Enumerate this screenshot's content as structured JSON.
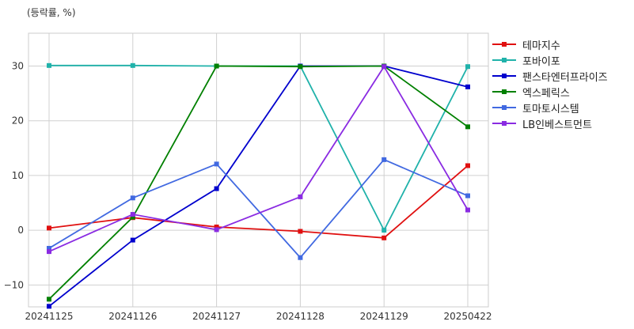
{
  "chart_data": {
    "type": "line",
    "unit_label": "(등락률, %)",
    "categories": [
      "20241125",
      "20241126",
      "20241127",
      "20241128",
      "20241129",
      "20250422"
    ],
    "ylim": [
      -14,
      36
    ],
    "yticks": [
      -10,
      0,
      10,
      20,
      30
    ],
    "ytick_labels": [
      "−10",
      "0",
      "10",
      "20",
      "30"
    ],
    "grid": true,
    "legend_position": "right",
    "series": [
      {
        "name": "테마지수",
        "color": "#e01010",
        "values": [
          0.4,
          2.3,
          0.6,
          -0.2,
          -1.4,
          11.8
        ]
      },
      {
        "name": "포바이포",
        "color": "#20b2aa",
        "values": [
          30.1,
          30.1,
          30.0,
          30.0,
          0.0,
          29.9
        ]
      },
      {
        "name": "팬스타엔터프라이즈",
        "color": "#0000cd",
        "values": [
          -13.9,
          -1.8,
          7.6,
          30.0,
          30.0,
          26.2
        ]
      },
      {
        "name": "엑스페릭스",
        "color": "#008000",
        "values": [
          -12.6,
          2.4,
          30.0,
          29.9,
          30.0,
          18.9
        ]
      },
      {
        "name": "토마토시스템",
        "color": "#4169e1",
        "values": [
          -3.3,
          5.9,
          12.1,
          -5.0,
          12.9,
          6.3
        ]
      },
      {
        "name": "LB인베스트먼트",
        "color": "#8a2be2",
        "values": [
          -3.9,
          2.9,
          0.1,
          6.1,
          29.9,
          3.7
        ]
      }
    ]
  }
}
